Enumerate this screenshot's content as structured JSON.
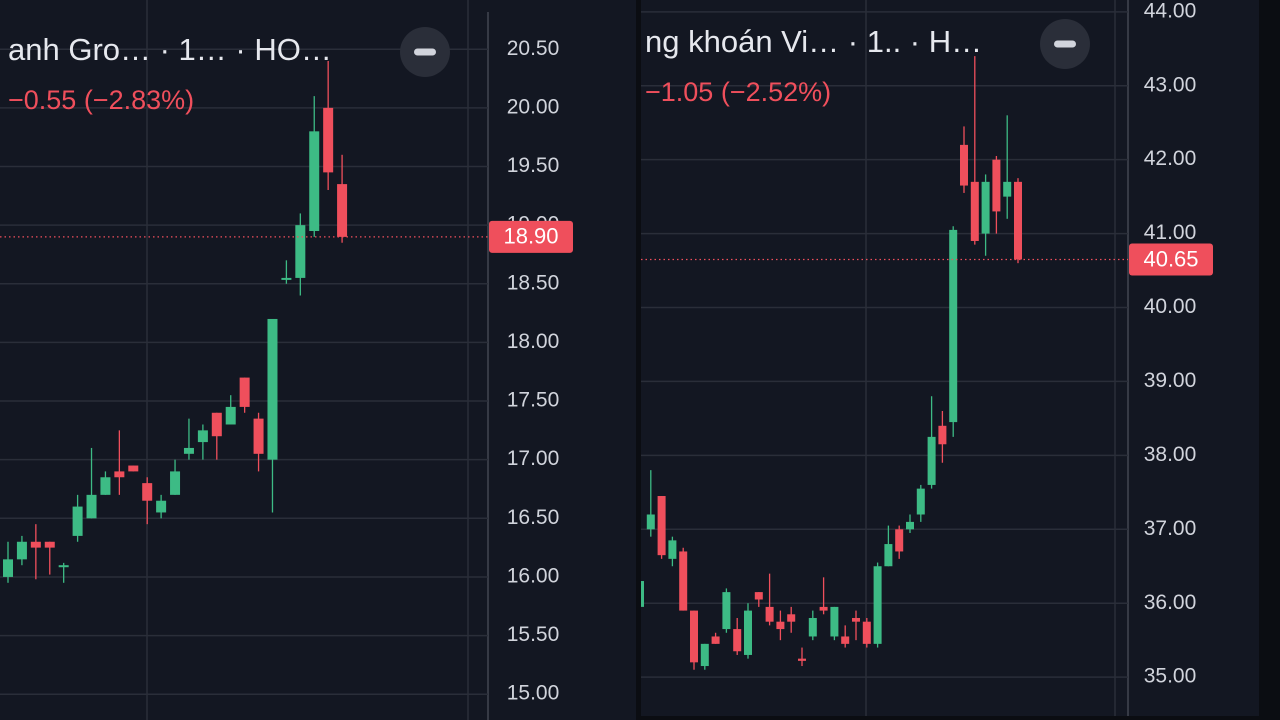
{
  "chart_data": [
    {
      "type": "candlestick",
      "title": "anh Gro…  · 1… · HO…",
      "change": "−0.55 (−2.83%)",
      "open": [
        16.0,
        16.15,
        16.3,
        16.3,
        16.1,
        16.35,
        16.5,
        16.7,
        16.9,
        16.95,
        16.8,
        16.55,
        16.7,
        17.05,
        17.15,
        17.4,
        17.3,
        17.7,
        17.35,
        17.0,
        18.55,
        18.55,
        18.95,
        20.0,
        19.35
      ],
      "high": [
        16.3,
        16.35,
        16.45,
        16.3,
        16.12,
        16.7,
        17.1,
        16.9,
        17.25,
        16.95,
        16.85,
        16.7,
        17.0,
        17.35,
        17.3,
        17.4,
        17.55,
        17.7,
        17.4,
        18.2,
        18.7,
        19.1,
        20.1,
        20.4,
        19.6
      ],
      "low": [
        15.95,
        16.1,
        15.98,
        16.02,
        15.95,
        16.3,
        16.5,
        16.7,
        16.7,
        16.9,
        16.45,
        16.5,
        16.7,
        17.0,
        17.0,
        17.0,
        17.3,
        17.4,
        16.9,
        16.55,
        18.5,
        18.4,
        18.9,
        19.3,
        18.85
      ],
      "close": [
        16.15,
        16.3,
        16.25,
        16.25,
        16.1,
        16.6,
        16.7,
        16.85,
        16.85,
        16.9,
        16.65,
        16.65,
        16.9,
        17.1,
        17.25,
        17.2,
        17.45,
        17.45,
        17.05,
        18.2,
        18.55,
        19.0,
        19.8,
        19.45,
        18.9
      ],
      "up_color": "#3dbb85",
      "down_color": "#ef4f5c",
      "ylim": [
        14.78,
        20.92
      ],
      "yticks": [
        {
          "value": 15,
          "label": "15.00"
        },
        {
          "value": 15.5,
          "label": "15.50"
        },
        {
          "value": 16,
          "label": "16.00"
        },
        {
          "value": 16.5,
          "label": "16.50"
        },
        {
          "value": 17,
          "label": "17.00"
        },
        {
          "value": 17.5,
          "label": "17.50"
        },
        {
          "value": 18,
          "label": "18.00"
        },
        {
          "value": 18.5,
          "label": "18.50"
        },
        {
          "value": 19,
          "label": "19.00"
        },
        {
          "value": 19.5,
          "label": "19.50"
        },
        {
          "value": 20,
          "label": "20.00"
        },
        {
          "value": 20.5,
          "label": "20.50"
        }
      ],
      "last_price": {
        "value": 18.9,
        "label": "18.90"
      },
      "grid": true
    },
    {
      "type": "candlestick",
      "title": "ng khoán Vi…  · 1.. · H…",
      "change": "−1.05 (−2.52%)",
      "open": [
        35.95,
        37.0,
        37.45,
        36.6,
        36.7,
        35.9,
        35.15,
        35.55,
        35.65,
        35.65,
        35.3,
        36.15,
        35.95,
        35.75,
        35.85,
        35.25,
        35.55,
        35.95,
        35.55,
        35.55,
        35.8,
        35.75,
        35.45,
        36.5,
        37.0,
        37.0,
        37.2,
        37.6,
        38.4,
        38.45,
        42.2,
        41.7,
        41.0,
        42.0,
        41.5,
        41.7
      ],
      "high": [
        36.3,
        37.8,
        37.45,
        36.9,
        36.75,
        35.9,
        35.45,
        35.6,
        36.2,
        35.8,
        36.0,
        36.15,
        36.4,
        35.9,
        35.95,
        35.4,
        35.9,
        36.35,
        35.95,
        35.7,
        35.9,
        35.8,
        36.55,
        37.05,
        37.05,
        37.2,
        37.6,
        38.8,
        38.6,
        41.1,
        42.45,
        43.4,
        41.8,
        42.05,
        42.6,
        41.75
      ],
      "low": [
        35.9,
        36.9,
        36.6,
        36.5,
        35.9,
        35.1,
        35.1,
        35.45,
        35.6,
        35.3,
        35.25,
        35.95,
        35.7,
        35.5,
        35.6,
        35.15,
        35.5,
        35.85,
        35.5,
        35.4,
        35.5,
        35.4,
        35.4,
        36.5,
        36.6,
        36.95,
        37.1,
        37.55,
        37.9,
        38.25,
        41.55,
        40.85,
        40.7,
        41.0,
        41.2,
        40.6
      ],
      "close": [
        36.3,
        37.2,
        36.65,
        36.85,
        35.9,
        35.2,
        35.45,
        35.45,
        36.15,
        35.35,
        35.9,
        36.05,
        35.75,
        35.65,
        35.75,
        35.22,
        35.8,
        35.9,
        35.95,
        35.45,
        35.75,
        35.45,
        36.5,
        36.8,
        36.7,
        37.1,
        37.55,
        38.25,
        38.15,
        41.05,
        41.65,
        40.9,
        41.7,
        41.3,
        41.7,
        40.65
      ],
      "up_color": "#3dbb85",
      "down_color": "#ef4f5c",
      "ylim": [
        34.42,
        44.16
      ],
      "yticks": [
        {
          "value": 35,
          "label": "35.00"
        },
        {
          "value": 36,
          "label": "36.00"
        },
        {
          "value": 37,
          "label": "37.00"
        },
        {
          "value": 38,
          "label": "38.00"
        },
        {
          "value": 39,
          "label": "39.00"
        },
        {
          "value": 40,
          "label": "40.00"
        },
        {
          "value": 41,
          "label": "41.00"
        },
        {
          "value": 42,
          "label": "42.00"
        },
        {
          "value": 43,
          "label": "43.00"
        },
        {
          "value": 44,
          "label": "44.00"
        }
      ],
      "last_price": {
        "value": 40.65,
        "label": "40.65"
      },
      "grid": true
    }
  ]
}
